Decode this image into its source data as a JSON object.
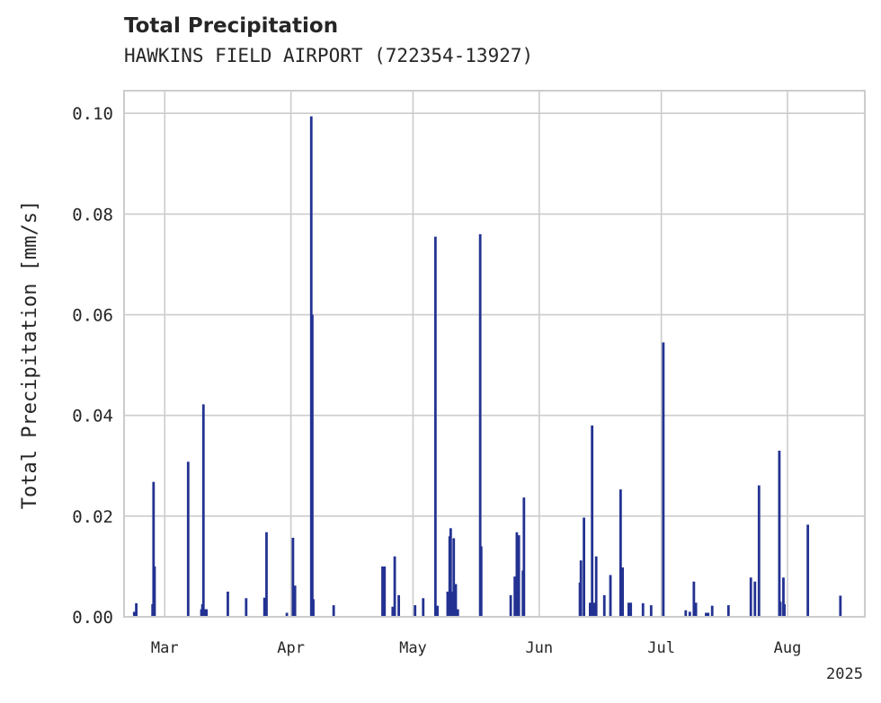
{
  "chart_data": {
    "type": "bar",
    "title": "Total Precipitation",
    "subtitle": "HAWKINS FIELD AIRPORT (722354-13927)",
    "ylabel": "Total Precipitation [mm/s]",
    "xlabel": "",
    "xlim": [
      "2025-02-19",
      "2025-08-20"
    ],
    "ylim": [
      0,
      0.1045
    ],
    "grid": true,
    "color": "#233292",
    "yticks": [
      {
        "value": 0.0,
        "label": "0.00"
      },
      {
        "value": 0.02,
        "label": "0.02"
      },
      {
        "value": 0.04,
        "label": "0.04"
      },
      {
        "value": 0.06,
        "label": "0.06"
      },
      {
        "value": 0.08,
        "label": "0.08"
      },
      {
        "value": 0.1,
        "label": "0.10"
      }
    ],
    "xticks": [
      {
        "date": "2025-03-01",
        "label": "Mar"
      },
      {
        "date": "2025-04-01",
        "label": "Apr"
      },
      {
        "date": "2025-05-01",
        "label": "May"
      },
      {
        "date": "2025-06-01",
        "label": "Jun"
      },
      {
        "date": "2025-07-01",
        "label": "Jul"
      },
      {
        "date": "2025-08-01",
        "label": "Aug"
      }
    ],
    "year_label": "2025",
    "x": [
      "2025-02-21T12:00",
      "2025-02-22T00:00",
      "2025-02-26T00:00",
      "2025-02-26T06:00",
      "2025-02-26T12:00",
      "2025-03-06T18:00",
      "2025-03-10T00:00",
      "2025-03-10T06:00",
      "2025-03-10T12:00",
      "2025-03-11T00:00",
      "2025-03-11T06:00",
      "2025-03-16T12:00",
      "2025-03-21T00:00",
      "2025-03-25T12:00",
      "2025-03-26T00:00",
      "2025-03-31T00:00",
      "2025-04-01T12:00",
      "2025-04-02T00:00",
      "2025-04-06T00:00",
      "2025-04-06T06:00",
      "2025-04-06T12:00",
      "2025-04-11T12:00",
      "2025-04-23T12:00",
      "2025-04-24T00:00",
      "2025-04-26T00:00",
      "2025-04-26T12:00",
      "2025-04-27T12:00",
      "2025-05-01T12:00",
      "2025-05-03T12:00",
      "2025-05-06T12:00",
      "2025-05-07T00:00",
      "2025-05-09T12:00",
      "2025-05-10T00:00",
      "2025-05-10T06:00",
      "2025-05-10T12:00",
      "2025-05-11T00:00",
      "2025-05-11T12:00",
      "2025-05-12T00:00",
      "2025-05-17T12:00",
      "2025-05-17T18:00",
      "2025-05-25T00:00",
      "2025-05-26T00:00",
      "2025-05-26T12:00",
      "2025-05-27T00:00",
      "2025-05-28T00:00",
      "2025-05-28T06:00",
      "2025-06-11T00:00",
      "2025-06-11T06:00",
      "2025-06-12T00:00",
      "2025-06-13T12:00",
      "2025-06-14T00:00",
      "2025-06-14T12:00",
      "2025-06-15T00:00",
      "2025-06-17T00:00",
      "2025-06-18T12:00",
      "2025-06-21T00:00",
      "2025-06-21T12:00",
      "2025-06-23T00:00",
      "2025-06-23T12:00",
      "2025-06-26T12:00",
      "2025-06-28T12:00",
      "2025-07-01T12:00",
      "2025-07-07T00:00",
      "2025-07-08T00:00",
      "2025-07-09T00:00",
      "2025-07-09T12:00",
      "2025-07-12T00:00",
      "2025-07-12T12:00",
      "2025-07-13T12:00",
      "2025-07-17T12:00",
      "2025-07-23T00:00",
      "2025-07-24T00:00",
      "2025-07-25T00:00",
      "2025-07-30T00:00",
      "2025-07-30T06:00",
      "2025-07-31T00:00",
      "2025-07-31T06:00",
      "2025-08-06T00:00",
      "2025-08-14T00:00"
    ],
    "values": [
      0.001,
      0.0027,
      0.0025,
      0.0268,
      0.01,
      0.0308,
      0.0015,
      0.0025,
      0.0422,
      0.0015,
      0.0015,
      0.005,
      0.0037,
      0.0038,
      0.0168,
      0.0008,
      0.0157,
      0.0062,
      0.0994,
      0.06,
      0.0035,
      0.0023,
      0.01,
      0.01,
      0.002,
      0.012,
      0.0043,
      0.0023,
      0.0037,
      0.0755,
      0.0022,
      0.005,
      0.016,
      0.0176,
      0.005,
      0.0156,
      0.0065,
      0.0015,
      0.076,
      0.014,
      0.0043,
      0.008,
      0.0168,
      0.0162,
      0.0092,
      0.0237,
      0.0068,
      0.0112,
      0.0197,
      0.0028,
      0.038,
      0.0028,
      0.012,
      0.0043,
      0.0083,
      0.0253,
      0.0098,
      0.0028,
      0.0028,
      0.0027,
      0.0023,
      0.0545,
      0.0013,
      0.001,
      0.007,
      0.0028,
      0.0008,
      0.0008,
      0.0022,
      0.0023,
      0.0078,
      0.007,
      0.0261,
      0.033,
      0.003,
      0.0078,
      0.0025,
      0.0183,
      0.0042
    ]
  }
}
